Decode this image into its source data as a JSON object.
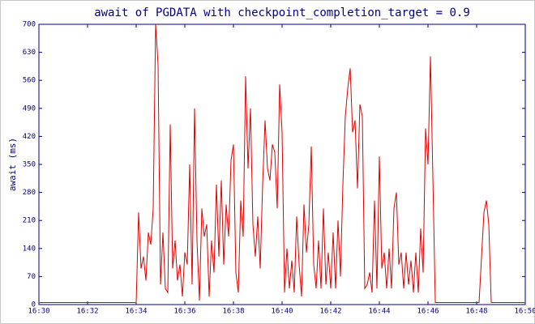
{
  "chart_data": {
    "type": "line",
    "title": "await of PGDATA with checkpoint_completion_target = 0.9",
    "y_label": "await (ms)",
    "xlim": [
      990,
      1010
    ],
    "xticks": [
      {
        "value": 990,
        "label": "16:30"
      },
      {
        "value": 992,
        "label": "16:32"
      },
      {
        "value": 994,
        "label": "16:34"
      },
      {
        "value": 996,
        "label": "16:36"
      },
      {
        "value": 998,
        "label": "16:38"
      },
      {
        "value": 1000,
        "label": "16:40"
      },
      {
        "value": 1002,
        "label": "16:42"
      },
      {
        "value": 1004,
        "label": "16:44"
      },
      {
        "value": 1006,
        "label": "16:46"
      },
      {
        "value": 1008,
        "label": "16:48"
      },
      {
        "value": 1010,
        "label": "16:50"
      }
    ],
    "ylim": [
      0,
      700
    ],
    "yticks": [
      0,
      70,
      140,
      210,
      280,
      350,
      420,
      490,
      560,
      630,
      700
    ],
    "series": [
      {
        "color": "#e00000",
        "x": [
          990,
          994.0,
          994.1,
          994.2,
          994.3,
          994.4,
          994.5,
          994.6,
          994.7,
          994.8,
          994.9,
          995.0,
          995.1,
          995.2,
          995.3,
          995.4,
          995.5,
          995.6,
          995.7,
          995.8,
          995.9,
          996.0,
          996.1,
          996.2,
          996.3,
          996.4,
          996.5,
          996.6,
          996.7,
          996.8,
          996.9,
          997.0,
          997.1,
          997.2,
          997.3,
          997.4,
          997.5,
          997.6,
          997.7,
          997.8,
          997.9,
          998.0,
          998.1,
          998.2,
          998.3,
          998.4,
          998.5,
          998.6,
          998.7,
          998.8,
          998.9,
          999.0,
          999.1,
          999.2,
          999.3,
          999.4,
          999.5,
          999.6,
          999.7,
          999.8,
          999.9,
          1000.0,
          1000.1,
          1000.2,
          1000.3,
          1000.4,
          1000.5,
          1000.6,
          1000.7,
          1000.8,
          1000.9,
          1001.0,
          1001.1,
          1001.2,
          1001.3,
          1001.4,
          1001.5,
          1001.6,
          1001.7,
          1001.8,
          1001.9,
          1002.0,
          1002.1,
          1002.2,
          1002.3,
          1002.4,
          1002.5,
          1002.6,
          1002.7,
          1002.8,
          1002.9,
          1003.0,
          1003.1,
          1003.2,
          1003.3,
          1003.4,
          1003.5,
          1003.6,
          1003.7,
          1003.8,
          1003.9,
          1004.0,
          1004.1,
          1004.2,
          1004.3,
          1004.4,
          1004.5,
          1004.6,
          1004.7,
          1004.8,
          1004.9,
          1005.0,
          1005.1,
          1005.2,
          1005.3,
          1005.4,
          1005.5,
          1005.6,
          1005.7,
          1005.8,
          1005.9,
          1006.0,
          1006.1,
          1006.2,
          1006.3,
          1008.1,
          1008.3,
          1008.4,
          1008.5,
          1008.6,
          1010.0
        ],
        "values": [
          5,
          5,
          230,
          90,
          120,
          60,
          180,
          150,
          240,
          700,
          600,
          50,
          180,
          40,
          30,
          450,
          90,
          160,
          60,
          100,
          20,
          130,
          100,
          350,
          50,
          490,
          160,
          10,
          240,
          170,
          200,
          20,
          160,
          80,
          300,
          120,
          310,
          100,
          250,
          170,
          360,
          400,
          80,
          30,
          260,
          170,
          570,
          340,
          490,
          200,
          120,
          220,
          90,
          300,
          460,
          340,
          310,
          400,
          380,
          240,
          550,
          430,
          30,
          140,
          40,
          110,
          30,
          220,
          100,
          20,
          250,
          130,
          200,
          395,
          100,
          40,
          160,
          40,
          240,
          50,
          130,
          40,
          180,
          40,
          210,
          70,
          300,
          470,
          540,
          590,
          430,
          460,
          290,
          500,
          470,
          40,
          50,
          80,
          30,
          260,
          40,
          370,
          90,
          130,
          40,
          140,
          40,
          240,
          280,
          100,
          130,
          40,
          130,
          50,
          110,
          30,
          130,
          30,
          190,
          80,
          440,
          350,
          620,
          320,
          5,
          5,
          230,
          260,
          200,
          5,
          5
        ]
      }
    ]
  }
}
